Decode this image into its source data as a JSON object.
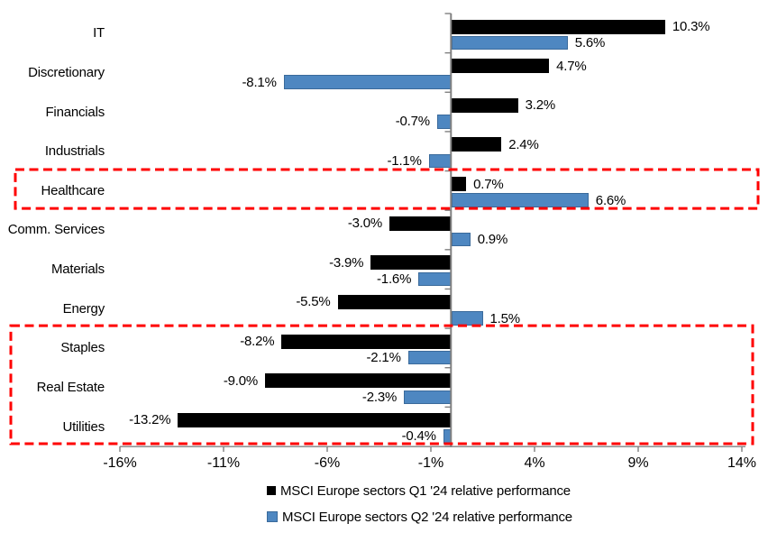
{
  "chart_data": {
    "type": "bar",
    "orientation": "horizontal",
    "title": "",
    "xlabel": "",
    "ylabel": "",
    "categories": [
      "IT",
      "Discretionary",
      "Financials",
      "Industrials",
      "Healthcare",
      "Comm. Services",
      "Materials",
      "Energy",
      "Staples",
      "Real Estate",
      "Utilities"
    ],
    "series": [
      {
        "name": "MSCI Europe sectors Q1 '24 relative performance",
        "color": "#000000",
        "border_color": "#000000",
        "values": [
          10.3,
          4.7,
          3.2,
          2.4,
          0.7,
          -3.0,
          -3.9,
          -5.5,
          -8.2,
          -9.0,
          -13.2
        ],
        "labels": [
          "10.3%",
          "4.7%",
          "3.2%",
          "2.4%",
          "0.7%",
          "-3.0%",
          "-3.9%",
          "-5.5%",
          "-8.2%",
          "-9.0%",
          "-13.2%"
        ]
      },
      {
        "name": "MSCI Europe sectors Q2 '24 relative performance",
        "color": "#4E87C1",
        "border_color": "#3A6A9B",
        "values": [
          5.6,
          -8.1,
          -0.7,
          -1.1,
          6.6,
          0.9,
          -1.6,
          1.5,
          -2.1,
          -2.3,
          -0.4
        ],
        "labels": [
          "5.6%",
          "-8.1%",
          "-0.7%",
          "-1.1%",
          "6.6%",
          "0.9%",
          "-1.6%",
          "1.5%",
          "-2.1%",
          "-2.3%",
          "-0.4%"
        ]
      }
    ],
    "x_axis": {
      "tick_labels": [
        "-16%",
        "-11%",
        "-6%",
        "-1%",
        "4%",
        "9%",
        "14%"
      ],
      "tick_values": [
        -16,
        -11,
        -6,
        -1,
        4,
        9,
        14
      ],
      "range": [
        -16,
        14
      ],
      "grid": false
    },
    "legend_position": "bottom-center",
    "axis_color": "#808080",
    "highlight_color": "#FF0000",
    "highlights": [
      {
        "rows": [
          "Healthcare"
        ]
      },
      {
        "rows": [
          "Staples",
          "Real Estate",
          "Utilities"
        ]
      }
    ]
  }
}
